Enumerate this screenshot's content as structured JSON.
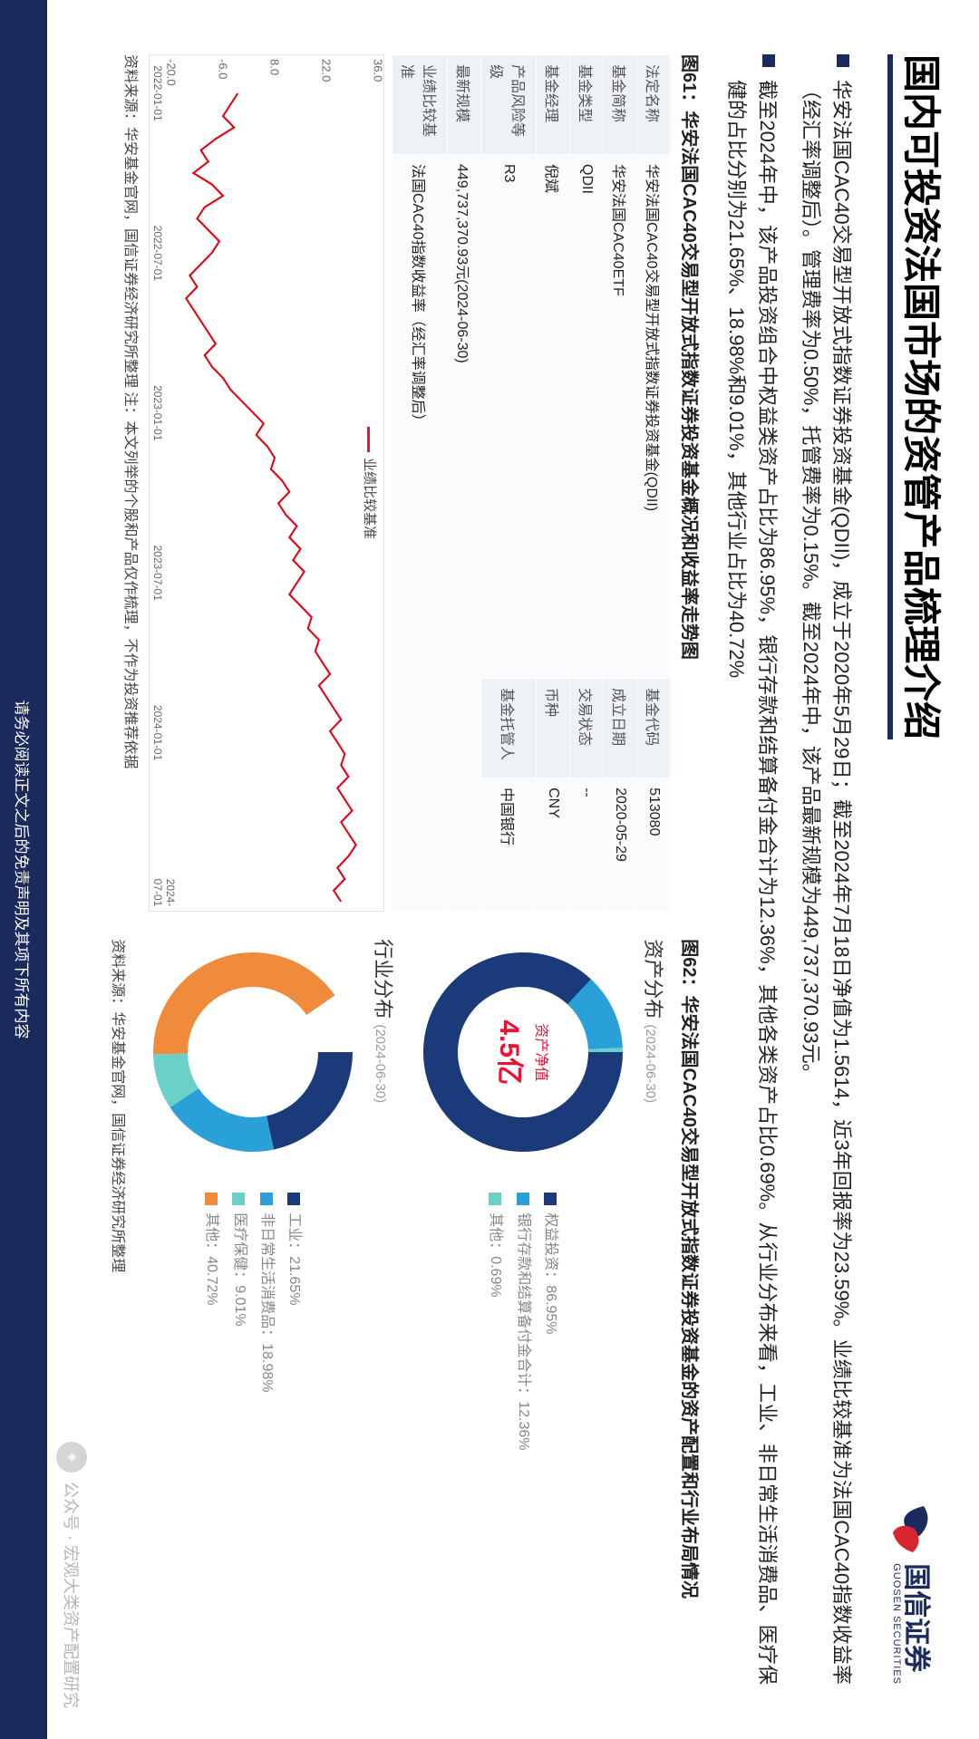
{
  "brand": {
    "name": "国信证券",
    "sub": "GUOSEN SECURITIES",
    "logo_colors": {
      "blue": "#1a2a5c",
      "red": "#d7262f"
    }
  },
  "title": "国内可投资法国市场的资管产品梳理介绍",
  "bullets": [
    "华安法国CAC40交易型开放式指数证券投资基金(QDII)，成立于2020年5月29日；截至2024年7月18日净值为1.5614，近3年回报率为23.59%。业绩比较基准为法国CAC40指数收益率（经汇率调整后）。管理费率为0.50%，托管费率为0.15%。截至2024年中，该产品最新规模为449,737,370.93元。",
    "截至2024年中，该产品投资组合中权益类资产占比为86.95%，银行存款和结算备付金合计为12.36%，其他各类资产占比0.69%。从行业分布来看，工业、非日常生活消费品、医疗保健的占比分别为21.65%、18.98%和9.01%，其他行业占比为40.72%"
  ],
  "fig61": {
    "title": "图61：华安法国CAC40交易型开放式指数证券投资基金概况和收益率走势图",
    "rows_left": [
      [
        "法定名称",
        "华安法国CAC40交易型开放式指数证券投资基金(QDII)"
      ],
      [
        "基金简称",
        "华安法国CAC40ETF"
      ],
      [
        "基金类型",
        "QDII"
      ],
      [
        "基金经理",
        "倪斌"
      ],
      [
        "产品风险等级",
        "R3"
      ],
      [
        "最新规模",
        "449,737,370.93元(2024-06-30)"
      ],
      [
        "业绩比较基准",
        "法国CAC40指数收益率（经汇率调整后）"
      ]
    ],
    "rows_right": [
      [
        "基金代码",
        "513080"
      ],
      [
        "成立日期",
        "2020-05-29"
      ],
      [
        "交易状态",
        "--"
      ],
      [
        "币种",
        "CNY"
      ],
      [
        "基金托管人",
        "中国银行"
      ]
    ],
    "chart": {
      "legend": "业绩比较基准",
      "ylim": [
        -20,
        36
      ],
      "yticks": [
        -20,
        -6,
        8,
        22,
        36
      ],
      "xlabels": [
        "2022-01-01",
        "2022-07-01",
        "2023-01-01",
        "2023-07-01",
        "2024-01-01",
        "2024-07-01"
      ],
      "line_color": "#e60012",
      "series": [
        -2,
        -4,
        -6,
        -3,
        -8,
        -12,
        -10,
        -14,
        -9,
        -6,
        -11,
        -13,
        -10,
        -7,
        -9,
        -12,
        -15,
        -13,
        -16,
        -14,
        -12,
        -10,
        -8,
        -11,
        -9,
        -6,
        -4,
        -1,
        2,
        5,
        3,
        6,
        8,
        7,
        10,
        12,
        9,
        11,
        14,
        12,
        15,
        13,
        16,
        14,
        12,
        15,
        18,
        17,
        20,
        19,
        21,
        23,
        20,
        22,
        24,
        26,
        23,
        25,
        27,
        26,
        28,
        25,
        27,
        29,
        26,
        28,
        30,
        28,
        25,
        27,
        24,
        26
      ]
    },
    "source": "资料来源：华安基金官网，国信证券经济研究所整理   注：本文列举的个股和产品仅作梳理，不作为投资推荐依据"
  },
  "fig62": {
    "title": "图62：华安法国CAC40交易型开放式指数证券投资基金的资产配置和行业布局情况",
    "asset": {
      "heading": "资产分布",
      "sub": "(2024-06-30)",
      "center_label": "资产净值",
      "center_value": "4.5亿",
      "items": [
        {
          "label": "权益投资",
          "pct": 86.95,
          "color": "#1a3a7a"
        },
        {
          "label": "银行存款和结算备付金合计",
          "pct": 12.36,
          "color": "#2aa0d8"
        },
        {
          "label": "其他",
          "pct": 0.69,
          "color": "#6bd1c8"
        }
      ]
    },
    "sector": {
      "heading": "行业分布",
      "sub": "(2024-06-30)",
      "items": [
        {
          "label": "工业",
          "pct": 21.65,
          "color": "#1a3a7a"
        },
        {
          "label": "非日常生活消费品",
          "pct": 18.98,
          "color": "#2aa0d8"
        },
        {
          "label": "医疗保健",
          "pct": 9.01,
          "color": "#6bd1c8"
        },
        {
          "label": "其他",
          "pct": 40.72,
          "color": "#f08b3c"
        }
      ]
    },
    "source": "资料来源：华安基金官网，国信证券经济研究所整理"
  },
  "footer": "请务必阅读正文之后的免责声明及其项下所有内容",
  "watermark": "公众号 · 宏观大类资产配置研究"
}
